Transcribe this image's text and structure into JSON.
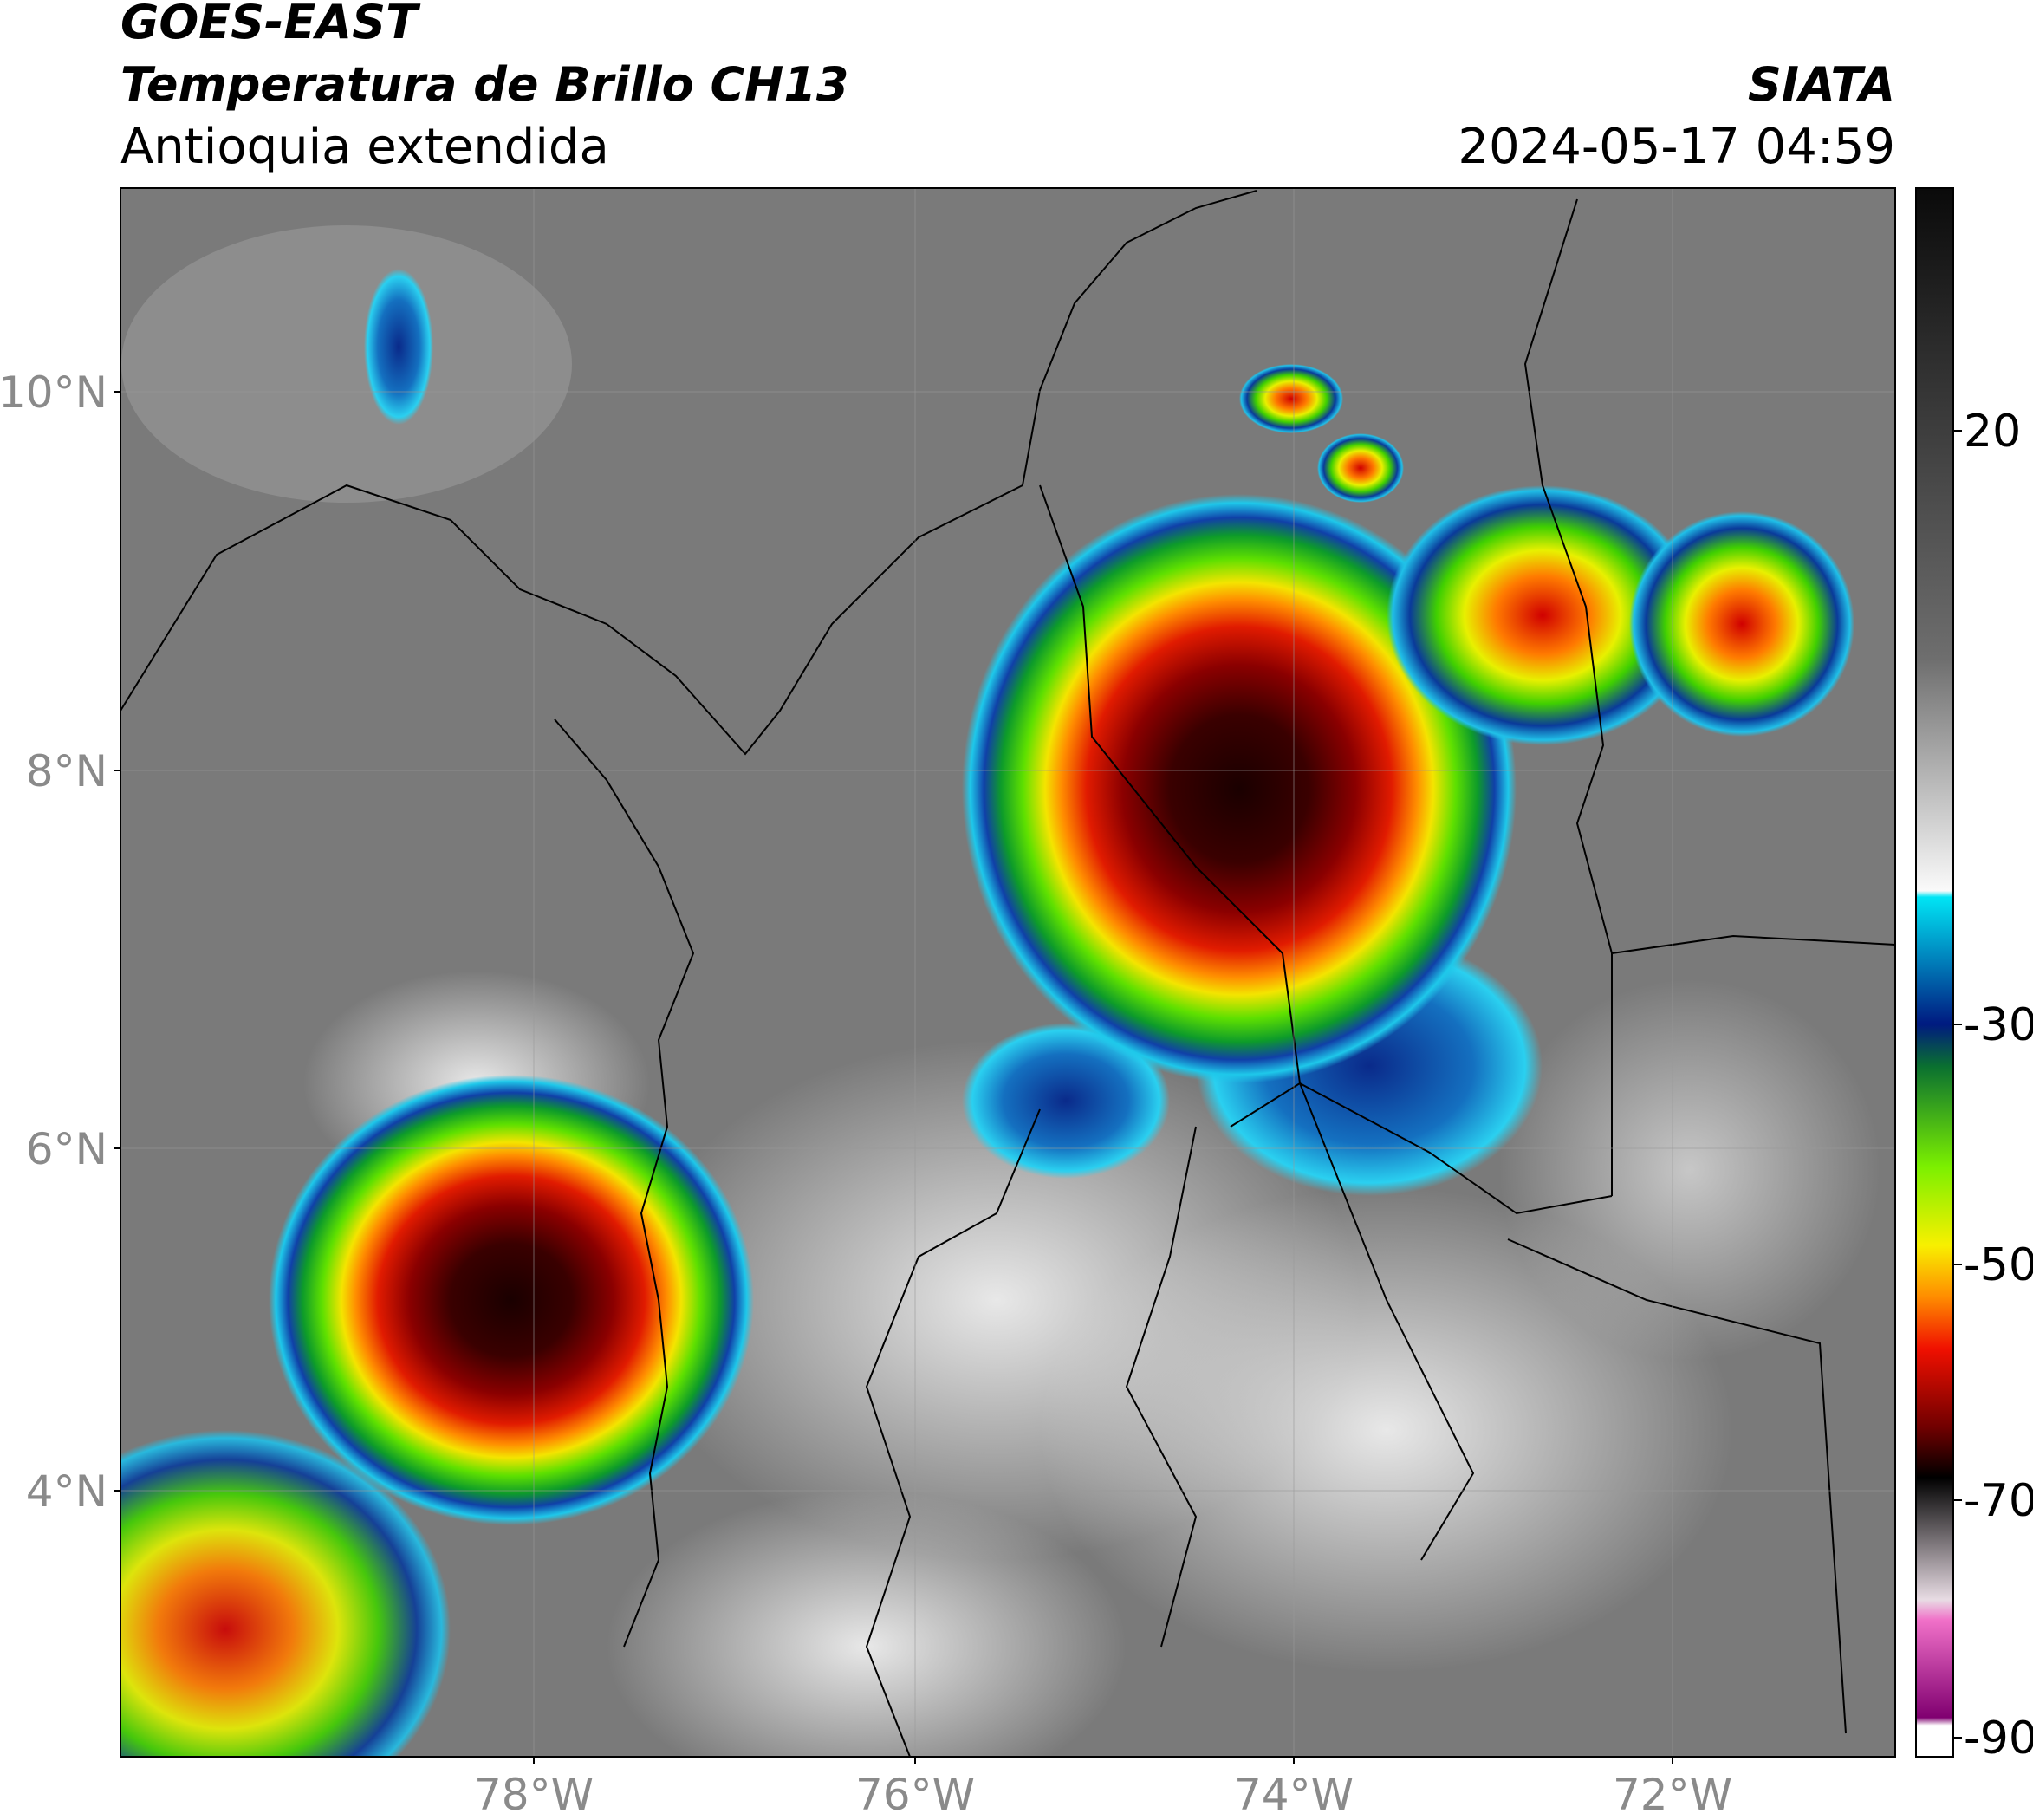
{
  "header": {
    "satellite": "GOES-EAST",
    "product": "Temperatura de Brillo CH13",
    "region": "Antioquia extendida",
    "source": "SIATA",
    "datetime": "2024-05-17 04:59"
  },
  "map": {
    "lat_ticks": [
      "10°N",
      "8°N",
      "6°N",
      "4°N"
    ],
    "lon_ticks": [
      "78°W",
      "76°W",
      "74°W",
      "72°W"
    ]
  },
  "colorbar": {
    "ticks": [
      "20",
      "-30",
      "-50",
      "-70",
      "-90"
    ]
  }
}
